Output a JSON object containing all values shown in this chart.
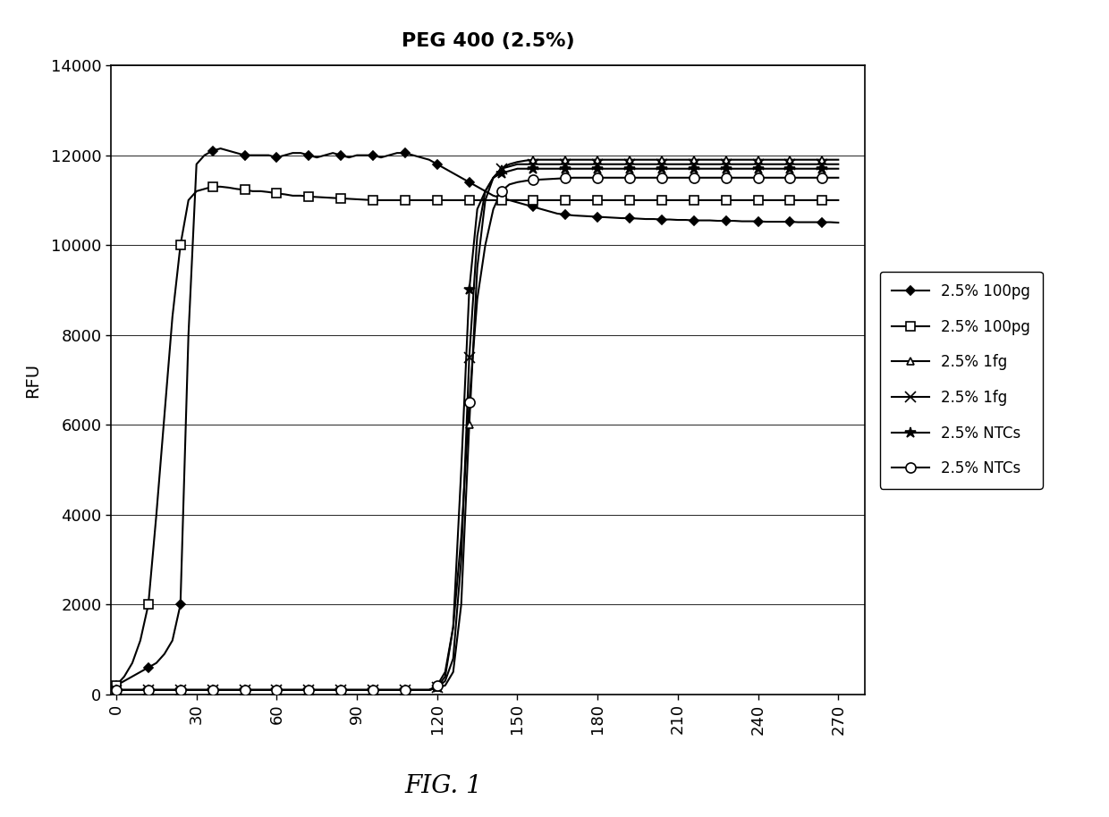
{
  "title": "PEG 400 (2.5%)",
  "xlabel": "",
  "ylabel": "RFU",
  "fig_caption": "FIG. 1",
  "xlim": [
    -2,
    280
  ],
  "ylim": [
    0,
    14000
  ],
  "xticks": [
    0,
    30,
    60,
    90,
    120,
    150,
    180,
    210,
    240,
    270
  ],
  "yticks": [
    0,
    2000,
    4000,
    6000,
    8000,
    10000,
    12000,
    14000
  ],
  "background_color": "#ffffff",
  "series": [
    {
      "label": "2.5% 100pg",
      "color": "#000000",
      "marker": "D",
      "marker_size": 5,
      "linewidth": 1.5,
      "linestyle": "-",
      "fillstyle": "full",
      "x": [
        0,
        3,
        6,
        9,
        12,
        15,
        18,
        21,
        24,
        27,
        30,
        33,
        36,
        39,
        42,
        45,
        48,
        51,
        54,
        57,
        60,
        63,
        66,
        69,
        72,
        75,
        78,
        81,
        84,
        87,
        90,
        93,
        96,
        99,
        102,
        105,
        108,
        111,
        114,
        117,
        120,
        123,
        126,
        129,
        132,
        135,
        138,
        141,
        144,
        147,
        150,
        153,
        156,
        159,
        162,
        165,
        168,
        171,
        174,
        177,
        180,
        183,
        186,
        189,
        192,
        195,
        198,
        201,
        204,
        207,
        210,
        213,
        216,
        219,
        222,
        225,
        228,
        231,
        234,
        237,
        240,
        243,
        246,
        249,
        252,
        255,
        258,
        261,
        264,
        267,
        270
      ],
      "y": [
        200,
        300,
        400,
        500,
        600,
        700,
        900,
        1200,
        2000,
        8000,
        11800,
        12000,
        12100,
        12150,
        12100,
        12050,
        12000,
        12000,
        12000,
        12000,
        11950,
        12000,
        12050,
        12050,
        12000,
        11950,
        12000,
        12050,
        12000,
        11950,
        12000,
        12000,
        12000,
        11950,
        12000,
        12050,
        12050,
        12000,
        11950,
        11900,
        11800,
        11700,
        11600,
        11500,
        11400,
        11300,
        11200,
        11100,
        11050,
        11000,
        10950,
        10900,
        10850,
        10800,
        10750,
        10700,
        10680,
        10660,
        10650,
        10640,
        10630,
        10620,
        10610,
        10600,
        10600,
        10590,
        10580,
        10580,
        10570,
        10570,
        10560,
        10560,
        10550,
        10550,
        10550,
        10540,
        10540,
        10540,
        10530,
        10530,
        10530,
        10520,
        10520,
        10520,
        10520,
        10510,
        10510,
        10510,
        10510,
        10510,
        10500
      ]
    },
    {
      "label": "2.5% 100pg",
      "color": "#000000",
      "marker": "s",
      "marker_size": 7,
      "linewidth": 1.5,
      "linestyle": "-",
      "fillstyle": "none",
      "hatch_marker": true,
      "x": [
        0,
        3,
        6,
        9,
        12,
        15,
        18,
        21,
        24,
        27,
        30,
        33,
        36,
        39,
        42,
        45,
        48,
        51,
        54,
        57,
        60,
        63,
        66,
        69,
        72,
        75,
        78,
        81,
        84,
        87,
        90,
        93,
        96,
        99,
        102,
        105,
        108,
        111,
        114,
        117,
        120,
        123,
        126,
        129,
        132,
        135,
        138,
        141,
        144,
        147,
        150,
        153,
        156,
        159,
        162,
        165,
        168,
        171,
        174,
        177,
        180,
        183,
        186,
        189,
        192,
        195,
        198,
        201,
        204,
        207,
        210,
        213,
        216,
        219,
        222,
        225,
        228,
        231,
        234,
        237,
        240,
        243,
        246,
        249,
        252,
        255,
        258,
        261,
        264,
        267,
        270
      ],
      "y": [
        200,
        400,
        700,
        1200,
        2000,
        4000,
        6200,
        8400,
        10000,
        11000,
        11200,
        11250,
        11300,
        11300,
        11280,
        11250,
        11230,
        11200,
        11200,
        11180,
        11150,
        11130,
        11100,
        11100,
        11080,
        11070,
        11060,
        11050,
        11040,
        11030,
        11020,
        11010,
        11000,
        11000,
        11000,
        11000,
        11000,
        11000,
        11000,
        11000,
        11000,
        11000,
        11000,
        11000,
        11000,
        11000,
        11000,
        11000,
        11000,
        11000,
        11000,
        11000,
        11000,
        11000,
        11000,
        11000,
        11000,
        11000,
        11000,
        11000,
        11000,
        11000,
        11000,
        11000,
        11000,
        11000,
        11000,
        11000,
        11000,
        11000,
        11000,
        11000,
        11000,
        11000,
        11000,
        11000,
        11000,
        11000,
        11000,
        11000,
        11000,
        11000,
        11000,
        11000,
        11000,
        11000,
        11000,
        11000,
        11000,
        11000,
        11000
      ]
    },
    {
      "label": "2.5% 1fg",
      "color": "#000000",
      "marker": "^",
      "marker_size": 6,
      "linewidth": 1.5,
      "linestyle": "-",
      "fillstyle": "none",
      "hatch_marker": true,
      "x": [
        0,
        3,
        6,
        9,
        12,
        15,
        18,
        21,
        24,
        27,
        30,
        33,
        36,
        39,
        42,
        45,
        48,
        51,
        54,
        57,
        60,
        63,
        66,
        69,
        72,
        75,
        78,
        81,
        84,
        87,
        90,
        93,
        96,
        99,
        102,
        105,
        108,
        111,
        114,
        117,
        120,
        123,
        126,
        129,
        132,
        135,
        138,
        141,
        144,
        147,
        150,
        153,
        156,
        159,
        162,
        165,
        168,
        171,
        174,
        177,
        180,
        183,
        186,
        189,
        192,
        195,
        198,
        201,
        204,
        207,
        210,
        213,
        216,
        219,
        222,
        225,
        228,
        231,
        234,
        237,
        240,
        243,
        246,
        249,
        252,
        255,
        258,
        261,
        264,
        267,
        270
      ],
      "y": [
        100,
        100,
        100,
        100,
        100,
        100,
        100,
        100,
        100,
        100,
        100,
        100,
        100,
        100,
        100,
        100,
        100,
        100,
        100,
        100,
        100,
        100,
        100,
        100,
        100,
        100,
        100,
        100,
        100,
        100,
        100,
        100,
        100,
        100,
        100,
        100,
        100,
        100,
        100,
        100,
        150,
        200,
        500,
        2000,
        6000,
        9500,
        11000,
        11500,
        11700,
        11800,
        11850,
        11880,
        11900,
        11900,
        11900,
        11900,
        11900,
        11900,
        11900,
        11900,
        11900,
        11900,
        11900,
        11900,
        11900,
        11900,
        11900,
        11900,
        11900,
        11900,
        11900,
        11900,
        11900,
        11900,
        11900,
        11900,
        11900,
        11900,
        11900,
        11900,
        11900,
        11900,
        11900,
        11900,
        11900,
        11900,
        11900,
        11900,
        11900,
        11900,
        11900
      ]
    },
    {
      "label": "2.5% 1fg",
      "color": "#000000",
      "marker": "x",
      "marker_size": 8,
      "linewidth": 1.5,
      "linestyle": "-",
      "fillstyle": "none",
      "x": [
        0,
        3,
        6,
        9,
        12,
        15,
        18,
        21,
        24,
        27,
        30,
        33,
        36,
        39,
        42,
        45,
        48,
        51,
        54,
        57,
        60,
        63,
        66,
        69,
        72,
        75,
        78,
        81,
        84,
        87,
        90,
        93,
        96,
        99,
        102,
        105,
        108,
        111,
        114,
        117,
        120,
        123,
        126,
        129,
        132,
        135,
        138,
        141,
        144,
        147,
        150,
        153,
        156,
        159,
        162,
        165,
        168,
        171,
        174,
        177,
        180,
        183,
        186,
        189,
        192,
        195,
        198,
        201,
        204,
        207,
        210,
        213,
        216,
        219,
        222,
        225,
        228,
        231,
        234,
        237,
        240,
        243,
        246,
        249,
        252,
        255,
        258,
        261,
        264,
        267,
        270
      ],
      "y": [
        100,
        100,
        100,
        100,
        100,
        100,
        100,
        100,
        100,
        100,
        100,
        100,
        100,
        100,
        100,
        100,
        100,
        100,
        100,
        100,
        100,
        100,
        100,
        100,
        100,
        100,
        100,
        100,
        100,
        100,
        100,
        100,
        100,
        100,
        100,
        100,
        100,
        100,
        100,
        100,
        150,
        300,
        800,
        3000,
        7500,
        10200,
        11200,
        11500,
        11700,
        11750,
        11800,
        11800,
        11800,
        11800,
        11800,
        11800,
        11800,
        11800,
        11800,
        11800,
        11800,
        11800,
        11800,
        11800,
        11800,
        11800,
        11800,
        11800,
        11800,
        11800,
        11800,
        11800,
        11800,
        11800,
        11800,
        11800,
        11800,
        11800,
        11800,
        11800,
        11800,
        11800,
        11800,
        11800,
        11800,
        11800,
        11800,
        11800,
        11800,
        11800,
        11800
      ]
    },
    {
      "label": "2.5% NTCs",
      "color": "#000000",
      "marker": "*",
      "marker_size": 9,
      "linewidth": 1.5,
      "linestyle": "-",
      "fillstyle": "full",
      "x": [
        0,
        3,
        6,
        9,
        12,
        15,
        18,
        21,
        24,
        27,
        30,
        33,
        36,
        39,
        42,
        45,
        48,
        51,
        54,
        57,
        60,
        63,
        66,
        69,
        72,
        75,
        78,
        81,
        84,
        87,
        90,
        93,
        96,
        99,
        102,
        105,
        108,
        111,
        114,
        117,
        120,
        123,
        126,
        129,
        132,
        135,
        138,
        141,
        144,
        147,
        150,
        153,
        156,
        159,
        162,
        165,
        168,
        171,
        174,
        177,
        180,
        183,
        186,
        189,
        192,
        195,
        198,
        201,
        204,
        207,
        210,
        213,
        216,
        219,
        222,
        225,
        228,
        231,
        234,
        237,
        240,
        243,
        246,
        249,
        252,
        255,
        258,
        261,
        264,
        267,
        270
      ],
      "y": [
        100,
        100,
        100,
        100,
        100,
        100,
        100,
        100,
        100,
        100,
        100,
        100,
        100,
        100,
        100,
        100,
        100,
        100,
        100,
        100,
        100,
        100,
        100,
        100,
        100,
        100,
        100,
        100,
        100,
        100,
        100,
        100,
        100,
        100,
        100,
        100,
        100,
        100,
        100,
        100,
        150,
        400,
        1500,
        5000,
        9000,
        10800,
        11200,
        11500,
        11600,
        11650,
        11700,
        11700,
        11700,
        11700,
        11700,
        11700,
        11700,
        11700,
        11700,
        11700,
        11700,
        11700,
        11700,
        11700,
        11700,
        11700,
        11700,
        11700,
        11700,
        11700,
        11700,
        11700,
        11700,
        11700,
        11700,
        11700,
        11700,
        11700,
        11700,
        11700,
        11700,
        11700,
        11700,
        11700,
        11700,
        11700,
        11700,
        11700,
        11700,
        11700,
        11700
      ]
    },
    {
      "label": "2.5% NTCs",
      "color": "#000000",
      "marker": "o",
      "marker_size": 8,
      "linewidth": 1.5,
      "linestyle": "-",
      "fillstyle": "none",
      "hatch_marker": true,
      "x": [
        0,
        3,
        6,
        9,
        12,
        15,
        18,
        21,
        24,
        27,
        30,
        33,
        36,
        39,
        42,
        45,
        48,
        51,
        54,
        57,
        60,
        63,
        66,
        69,
        72,
        75,
        78,
        81,
        84,
        87,
        90,
        93,
        96,
        99,
        102,
        105,
        108,
        111,
        114,
        117,
        120,
        123,
        126,
        129,
        132,
        135,
        138,
        141,
        144,
        147,
        150,
        153,
        156,
        159,
        162,
        165,
        168,
        171,
        174,
        177,
        180,
        183,
        186,
        189,
        192,
        195,
        198,
        201,
        204,
        207,
        210,
        213,
        216,
        219,
        222,
        225,
        228,
        231,
        234,
        237,
        240,
        243,
        246,
        249,
        252,
        255,
        258,
        261,
        264,
        267,
        270
      ],
      "y": [
        100,
        100,
        100,
        100,
        100,
        100,
        100,
        100,
        100,
        100,
        100,
        100,
        100,
        100,
        100,
        100,
        100,
        100,
        100,
        100,
        100,
        100,
        100,
        100,
        100,
        100,
        100,
        100,
        100,
        100,
        100,
        100,
        100,
        100,
        100,
        100,
        100,
        100,
        100,
        100,
        200,
        500,
        1500,
        3500,
        6500,
        8800,
        10000,
        10800,
        11200,
        11350,
        11400,
        11430,
        11450,
        11460,
        11470,
        11480,
        11490,
        11500,
        11500,
        11500,
        11500,
        11500,
        11500,
        11500,
        11500,
        11500,
        11500,
        11500,
        11500,
        11500,
        11500,
        11500,
        11500,
        11500,
        11500,
        11500,
        11500,
        11500,
        11500,
        11500,
        11500,
        11500,
        11500,
        11500,
        11500,
        11500,
        11500,
        11500,
        11500,
        11500,
        11500
      ]
    }
  ]
}
